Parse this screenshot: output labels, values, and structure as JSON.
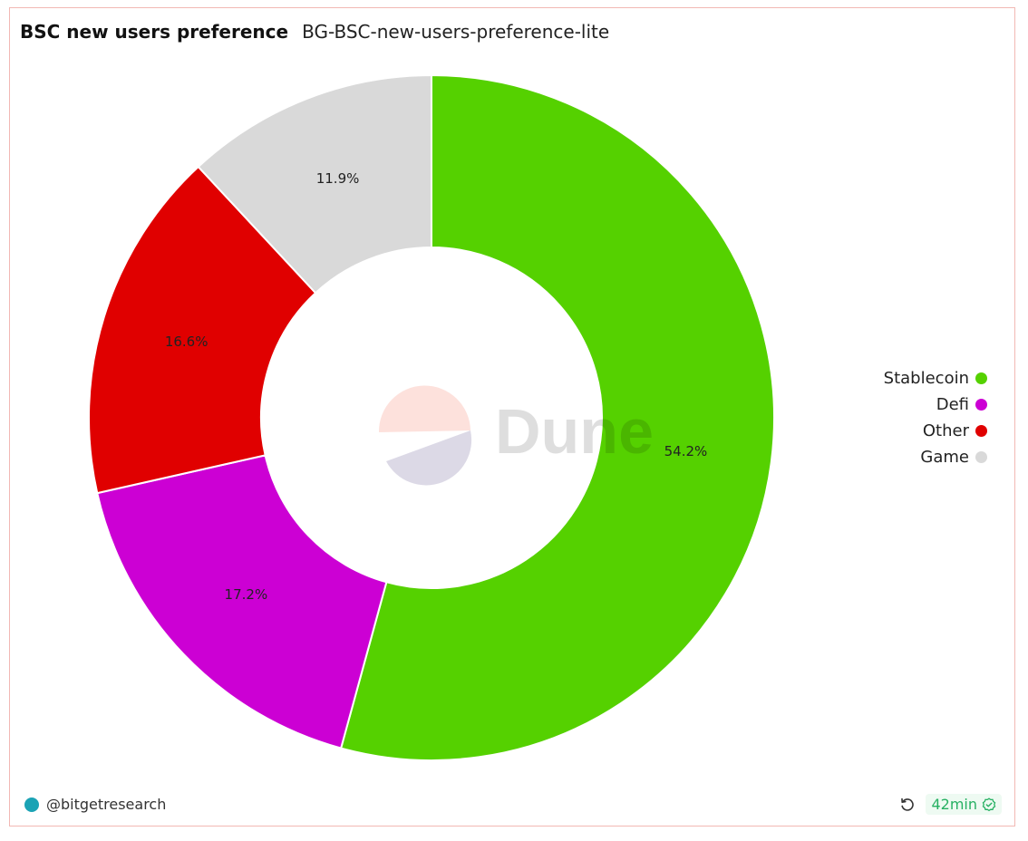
{
  "header": {
    "title": "BSC new users preference",
    "subtitle": "BG-BSC-new-users-preference-lite"
  },
  "chart_data": {
    "type": "pie",
    "donut": true,
    "title": "BSC new users preference",
    "categories": [
      "Stablecoin",
      "Defi",
      "Other",
      "Game"
    ],
    "values": [
      54.2,
      17.2,
      16.6,
      11.9
    ],
    "labels": [
      "54.2%",
      "17.2%",
      "16.6%",
      "11.9%"
    ],
    "colors": [
      "#55d100",
      "#cc00d4",
      "#e00000",
      "#d9d9d9"
    ],
    "legend_position": "right",
    "watermark": "Dune"
  },
  "footer": {
    "author": "@bitgetresearch",
    "refresh_icon": "refresh-icon",
    "age": "42min",
    "status_icon": "check-badge-icon"
  }
}
